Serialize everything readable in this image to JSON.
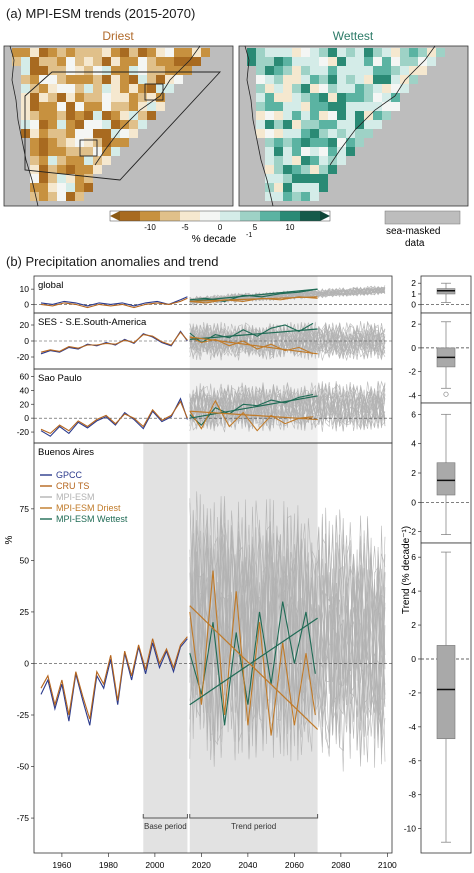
{
  "figure": {
    "panel_a_title": "(a) MPI-ESM trends (2015-2070)",
    "panel_b_title": "(b) Precipitation anomalies and trend",
    "map_left_title": "Driest",
    "map_right_title": "Wettest",
    "colorbar_ticks": [
      "-10",
      "-5",
      "0",
      "5",
      "10"
    ],
    "colorbar_label": "% decade",
    "colorbar_label_sup": "-1",
    "masked_label_1": "sea-masked",
    "masked_label_2": "data",
    "y_axis_label": "%",
    "trend_axis_label": "Trend (% decade⁻¹)",
    "base_period_label": "Base period",
    "trend_period_label": "Trend period"
  },
  "colors": {
    "gpcc": "#2b3a8c",
    "cru": "#b5651d",
    "ensemble": "#b3b3b3",
    "driest": "#c07a28",
    "wettest": "#1f6b55",
    "wettest_title": "#2d7b68",
    "driest_title": "#b06a2b",
    "period_shade": "#e2e2e2",
    "masked_gray": "#bdbdbd"
  },
  "chart_data": [
    {
      "type": "line",
      "panel": "global",
      "title": "global",
      "ylim": [
        -3,
        16
      ],
      "yticks": [
        0,
        10
      ],
      "series": [
        {
          "name": "GPCC",
          "x": [
            1951,
            1956,
            1961,
            1966,
            1971,
            1976,
            1981,
            1986,
            1991,
            1996,
            2001,
            2006,
            2011,
            2014
          ],
          "y": [
            1,
            0,
            2,
            1,
            -1,
            1,
            0,
            1,
            -1,
            1,
            2,
            0,
            3,
            5
          ]
        },
        {
          "name": "CRU TS",
          "x": [
            1951,
            1956,
            1961,
            1966,
            1971,
            1976,
            1981,
            1986,
            1991,
            1996,
            2001,
            2006,
            2011,
            2014
          ],
          "y": [
            0,
            -1,
            1,
            0,
            -2,
            0,
            -1,
            0,
            -2,
            0,
            1,
            0,
            2,
            4
          ]
        },
        {
          "name": "MPI-ESM Wettest",
          "x": [
            2015,
            2022,
            2030,
            2038,
            2046,
            2054,
            2062,
            2070
          ],
          "y": [
            3,
            4,
            2,
            6,
            5,
            7,
            8,
            10
          ]
        },
        {
          "name": "MPI-ESM Driest",
          "x": [
            2015,
            2022,
            2030,
            2038,
            2046,
            2054,
            2062,
            2070
          ],
          "y": [
            2,
            1,
            3,
            2,
            4,
            3,
            5,
            4
          ]
        }
      ],
      "ensemble_range": {
        "x": [
          2015,
          2099
        ],
        "low": [
          -1,
          6
        ],
        "high": [
          6,
          13
        ]
      },
      "trends": [
        {
          "name": "MPI-ESM Wettest",
          "x": [
            2015,
            2070
          ],
          "y": [
            2,
            10
          ]
        },
        {
          "name": "MPI-ESM Driest",
          "x": [
            2015,
            2070
          ],
          "y": [
            2,
            5
          ]
        }
      ],
      "box": {
        "min": 0.2,
        "q1": 1.0,
        "median": 1.3,
        "q3": 1.5,
        "max": 2.0,
        "ylim": [
          -0.4,
          2.3
        ],
        "yticks": [
          0,
          1,
          2
        ]
      }
    },
    {
      "type": "line",
      "panel": "ses",
      "title": "SES - S.E.South-America",
      "ylim": [
        -30,
        30
      ],
      "yticks": [
        -20,
        0,
        20
      ],
      "series": [
        {
          "name": "GPCC",
          "x": [
            1951,
            1955,
            1959,
            1963,
            1967,
            1971,
            1975,
            1979,
            1983,
            1987,
            1991,
            1995,
            1999,
            2003,
            2007,
            2011,
            2014
          ],
          "y": [
            -16,
            -12,
            -14,
            -8,
            -10,
            -4,
            -6,
            -2,
            -5,
            2,
            -3,
            9,
            5,
            -2,
            -6,
            12,
            0
          ]
        },
        {
          "name": "CRU TS",
          "x": [
            1951,
            1955,
            1959,
            1963,
            1967,
            1971,
            1975,
            1979,
            1983,
            1987,
            1991,
            1995,
            1999,
            2003,
            2007,
            2011,
            2014
          ],
          "y": [
            -14,
            -11,
            -13,
            -7,
            -9,
            -5,
            -5,
            -3,
            -4,
            1,
            -2,
            8,
            6,
            -1,
            -5,
            11,
            1
          ]
        },
        {
          "name": "MPI-ESM Wettest",
          "x": [
            2015,
            2020,
            2026,
            2032,
            2038,
            2044,
            2050,
            2056,
            2062,
            2068
          ],
          "y": [
            10,
            -2,
            8,
            4,
            14,
            6,
            16,
            20,
            12,
            22
          ]
        },
        {
          "name": "MPI-ESM Driest",
          "x": [
            2015,
            2020,
            2026,
            2032,
            2038,
            2044,
            2050,
            2056,
            2062,
            2068
          ],
          "y": [
            5,
            -2,
            2,
            -6,
            0,
            -10,
            -4,
            -12,
            -8,
            -16
          ]
        }
      ],
      "ensemble_range": {
        "x": [
          2015,
          2099
        ],
        "low": [
          -28,
          -28
        ],
        "high": [
          28,
          28
        ]
      },
      "trends": [
        {
          "name": "MPI-ESM Wettest",
          "x": [
            2015,
            2070
          ],
          "y": [
            2,
            15
          ]
        },
        {
          "name": "MPI-ESM Driest",
          "x": [
            2015,
            2070
          ],
          "y": [
            5,
            -16
          ]
        }
      ],
      "box": {
        "min": -3.4,
        "q1": -1.6,
        "median": -0.8,
        "q3": 0.0,
        "max": 2.2,
        "outlier": -3.9,
        "ylim": [
          -4.3,
          2.6
        ],
        "yticks": [
          -4,
          -2,
          0,
          2
        ]
      }
    },
    {
      "type": "line",
      "panel": "saopaulo",
      "title": "Sao Paulo",
      "ylim": [
        -30,
        65
      ],
      "yticks": [
        -20,
        0,
        20,
        40,
        60
      ],
      "series": [
        {
          "name": "GPCC",
          "x": [
            1951,
            1955,
            1959,
            1963,
            1967,
            1971,
            1975,
            1979,
            1983,
            1987,
            1991,
            1995,
            1999,
            2003,
            2007,
            2011,
            2014
          ],
          "y": [
            -18,
            -26,
            -12,
            -22,
            -6,
            -14,
            -4,
            2,
            -10,
            8,
            -2,
            -15,
            10,
            -5,
            2,
            28,
            -2
          ]
        },
        {
          "name": "CRU TS",
          "x": [
            1951,
            1955,
            1959,
            1963,
            1967,
            1971,
            1975,
            1979,
            1983,
            1987,
            1991,
            1995,
            1999,
            2003,
            2007,
            2011,
            2014
          ],
          "y": [
            -16,
            -22,
            -10,
            -18,
            -4,
            -12,
            -2,
            4,
            -8,
            6,
            0,
            -12,
            12,
            -3,
            4,
            24,
            0
          ]
        },
        {
          "name": "MPI-ESM Wettest",
          "x": [
            2015,
            2020,
            2026,
            2032,
            2038,
            2044,
            2050,
            2056,
            2062,
            2068
          ],
          "y": [
            5,
            -10,
            15,
            6,
            20,
            18,
            26,
            22,
            30,
            34
          ]
        },
        {
          "name": "MPI-ESM Driest",
          "x": [
            2015,
            2020,
            2026,
            2032,
            2038,
            2044,
            2050,
            2056,
            2062,
            2068
          ],
          "y": [
            10,
            -15,
            25,
            -12,
            8,
            -18,
            4,
            -8,
            0,
            2
          ]
        }
      ],
      "ensemble_range": {
        "x": [
          2015,
          2099
        ],
        "low": [
          -25,
          -25
        ],
        "high": [
          55,
          60
        ]
      },
      "trends": [
        {
          "name": "MPI-ESM Wettest",
          "x": [
            2015,
            2070
          ],
          "y": [
            0,
            32
          ]
        },
        {
          "name": "MPI-ESM Driest",
          "x": [
            2015,
            2070
          ],
          "y": [
            10,
            -2
          ]
        }
      ],
      "box": {
        "min": -2.2,
        "q1": 0.5,
        "median": 1.5,
        "q3": 2.7,
        "max": 6.0,
        "ylim": [
          -2.5,
          6.5
        ],
        "yticks": [
          -2,
          0,
          2,
          4,
          6
        ]
      }
    },
    {
      "type": "line",
      "panel": "buenosaires",
      "title": "Buenos Aires",
      "ylim": [
        -90,
        105
      ],
      "yticks": [
        -75,
        -50,
        -25,
        0,
        25,
        50,
        75
      ],
      "series": [
        {
          "name": "GPCC",
          "x": [
            1951,
            1954,
            1957,
            1960,
            1963,
            1966,
            1969,
            1972,
            1975,
            1978,
            1981,
            1984,
            1987,
            1990,
            1993,
            1996,
            1999,
            2002,
            2005,
            2008,
            2011,
            2014
          ],
          "y": [
            -15,
            -8,
            -22,
            -10,
            -28,
            -5,
            -18,
            -30,
            -6,
            -12,
            2,
            -20,
            5,
            -8,
            8,
            -5,
            10,
            -2,
            6,
            -4,
            8,
            12
          ]
        },
        {
          "name": "CRU TS",
          "x": [
            1951,
            1954,
            1957,
            1960,
            1963,
            1966,
            1969,
            1972,
            1975,
            1978,
            1981,
            1984,
            1987,
            1990,
            1993,
            1996,
            1999,
            2002,
            2005,
            2008,
            2011,
            2014
          ],
          "y": [
            -12,
            -6,
            -20,
            -8,
            -25,
            -4,
            -16,
            -27,
            -4,
            -10,
            4,
            -18,
            6,
            -6,
            9,
            -3,
            12,
            0,
            7,
            -2,
            9,
            13
          ]
        },
        {
          "name": "MPI-ESM Wettest",
          "x": [
            2015,
            2020,
            2025,
            2030,
            2035,
            2040,
            2045,
            2050,
            2055,
            2060,
            2065,
            2069
          ],
          "y": [
            5,
            -15,
            20,
            -30,
            15,
            -20,
            25,
            -10,
            30,
            0,
            25,
            -5
          ]
        },
        {
          "name": "MPI-ESM Driest",
          "x": [
            2015,
            2020,
            2025,
            2030,
            2035,
            2040,
            2045,
            2050,
            2055,
            2060,
            2065,
            2069
          ],
          "y": [
            25,
            -20,
            45,
            -25,
            35,
            -30,
            20,
            -35,
            10,
            -30,
            5,
            -25
          ]
        }
      ],
      "ensemble_range": {
        "x": [
          2015,
          2099
        ],
        "low": [
          -60,
          -60
        ],
        "high": [
          95,
          80
        ]
      },
      "trends": [
        {
          "name": "MPI-ESM Wettest",
          "x": [
            2015,
            2070
          ],
          "y": [
            -20,
            22
          ]
        },
        {
          "name": "MPI-ESM Driest",
          "x": [
            2015,
            2070
          ],
          "y": [
            28,
            -32
          ]
        }
      ],
      "box": {
        "min": -10.8,
        "q1": -4.7,
        "median": -1.8,
        "q3": 0.8,
        "max": 6.3,
        "ylim": [
          -11.2,
          6.6
        ],
        "yticks": [
          -10,
          -8,
          -6,
          -4,
          -2,
          0,
          2,
          4,
          6
        ]
      }
    }
  ],
  "x_axis": {
    "xlim": [
      1948,
      2102
    ],
    "xticks": [
      1960,
      1980,
      2000,
      2020,
      2040,
      2060,
      2080,
      2100
    ]
  },
  "periods": {
    "base": [
      1995,
      2014
    ],
    "trend": [
      2015,
      2070
    ]
  },
  "legend": [
    {
      "key": "gpcc",
      "label": "GPCC"
    },
    {
      "key": "cru",
      "label": "CRU TS"
    },
    {
      "key": "ensemble",
      "label": "MPI-ESM"
    },
    {
      "key": "driest",
      "label": "MPI-ESM Driest"
    },
    {
      "key": "wettest",
      "label": "MPI-ESM Wettest"
    }
  ]
}
